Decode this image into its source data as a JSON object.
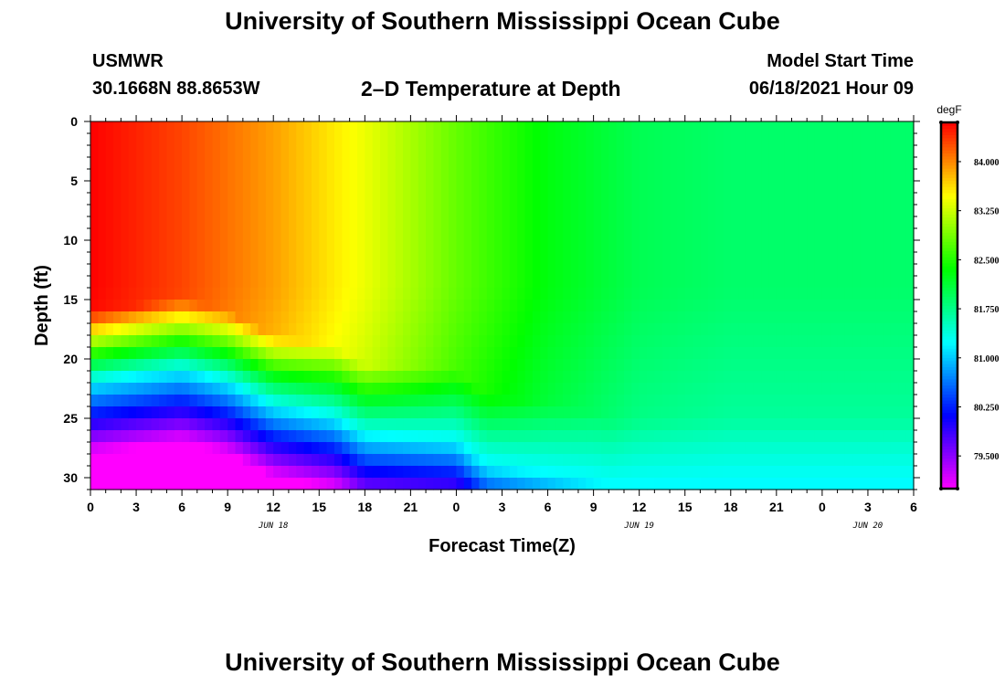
{
  "header": {
    "title": "University of Southern Mississippi Ocean Cube",
    "station": "USMWR",
    "coords": "30.1668N  88.8653W",
    "plot_title": "2–D Temperature at Depth",
    "model_label": "Model Start Time",
    "model_time": "06/18/2021 Hour 09"
  },
  "footer": {
    "title": "University of Southern Mississippi Ocean Cube"
  },
  "chart_data": {
    "type": "heatmap",
    "title": "2–D Temperature at Depth",
    "xlabel": "Forecast Time(Z)",
    "ylabel": "Depth (ft)",
    "x_ticks": [
      "0",
      "3",
      "6",
      "9",
      "12",
      "15",
      "18",
      "21",
      "0",
      "3",
      "6",
      "9",
      "12",
      "15",
      "18",
      "21",
      "0",
      "3",
      "6"
    ],
    "x_range_hours": [
      0,
      54
    ],
    "date_labels": [
      {
        "text": "JUN 18",
        "hour": 12
      },
      {
        "text": "JUN 19",
        "hour": 36
      },
      {
        "text": "JUN 20",
        "hour": 51
      }
    ],
    "y_ticks": [
      0,
      5,
      10,
      15,
      20,
      25,
      30
    ],
    "ylim": [
      0,
      31
    ],
    "y_inverted": true,
    "colorbar": {
      "unit": "degF",
      "ticks": [
        "84.000",
        "83.250",
        "82.500",
        "81.750",
        "81.000",
        "80.250",
        "79.500"
      ],
      "tick_values": [
        84.0,
        83.25,
        82.5,
        81.75,
        81.0,
        80.25,
        79.5
      ],
      "range": [
        79.0,
        84.6
      ]
    },
    "surface_temps": [
      {
        "hour": 0,
        "value": 84.6
      },
      {
        "hour": 6,
        "value": 84.3
      },
      {
        "hour": 12,
        "value": 83.9
      },
      {
        "hour": 18,
        "value": 83.4
      },
      {
        "hour": 24,
        "value": 82.8
      },
      {
        "hour": 30,
        "value": 82.3
      },
      {
        "hour": 36,
        "value": 82.0
      },
      {
        "hour": 42,
        "value": 81.9
      },
      {
        "hour": 54,
        "value": 81.9
      }
    ],
    "thermocline_depth_ft": [
      {
        "hour": 0,
        "value": 22
      },
      {
        "hour": 6,
        "value": 21
      },
      {
        "hour": 9,
        "value": 22
      },
      {
        "hour": 12,
        "value": 24
      },
      {
        "hour": 16,
        "value": 25
      },
      {
        "hour": 18,
        "value": 26.5
      },
      {
        "hour": 24,
        "value": 27
      },
      {
        "hour": 26,
        "value": 29
      },
      {
        "hour": 33,
        "value": 30.5
      },
      {
        "hour": 34,
        "value": 31
      }
    ],
    "bottom_temp": 79.0
  }
}
